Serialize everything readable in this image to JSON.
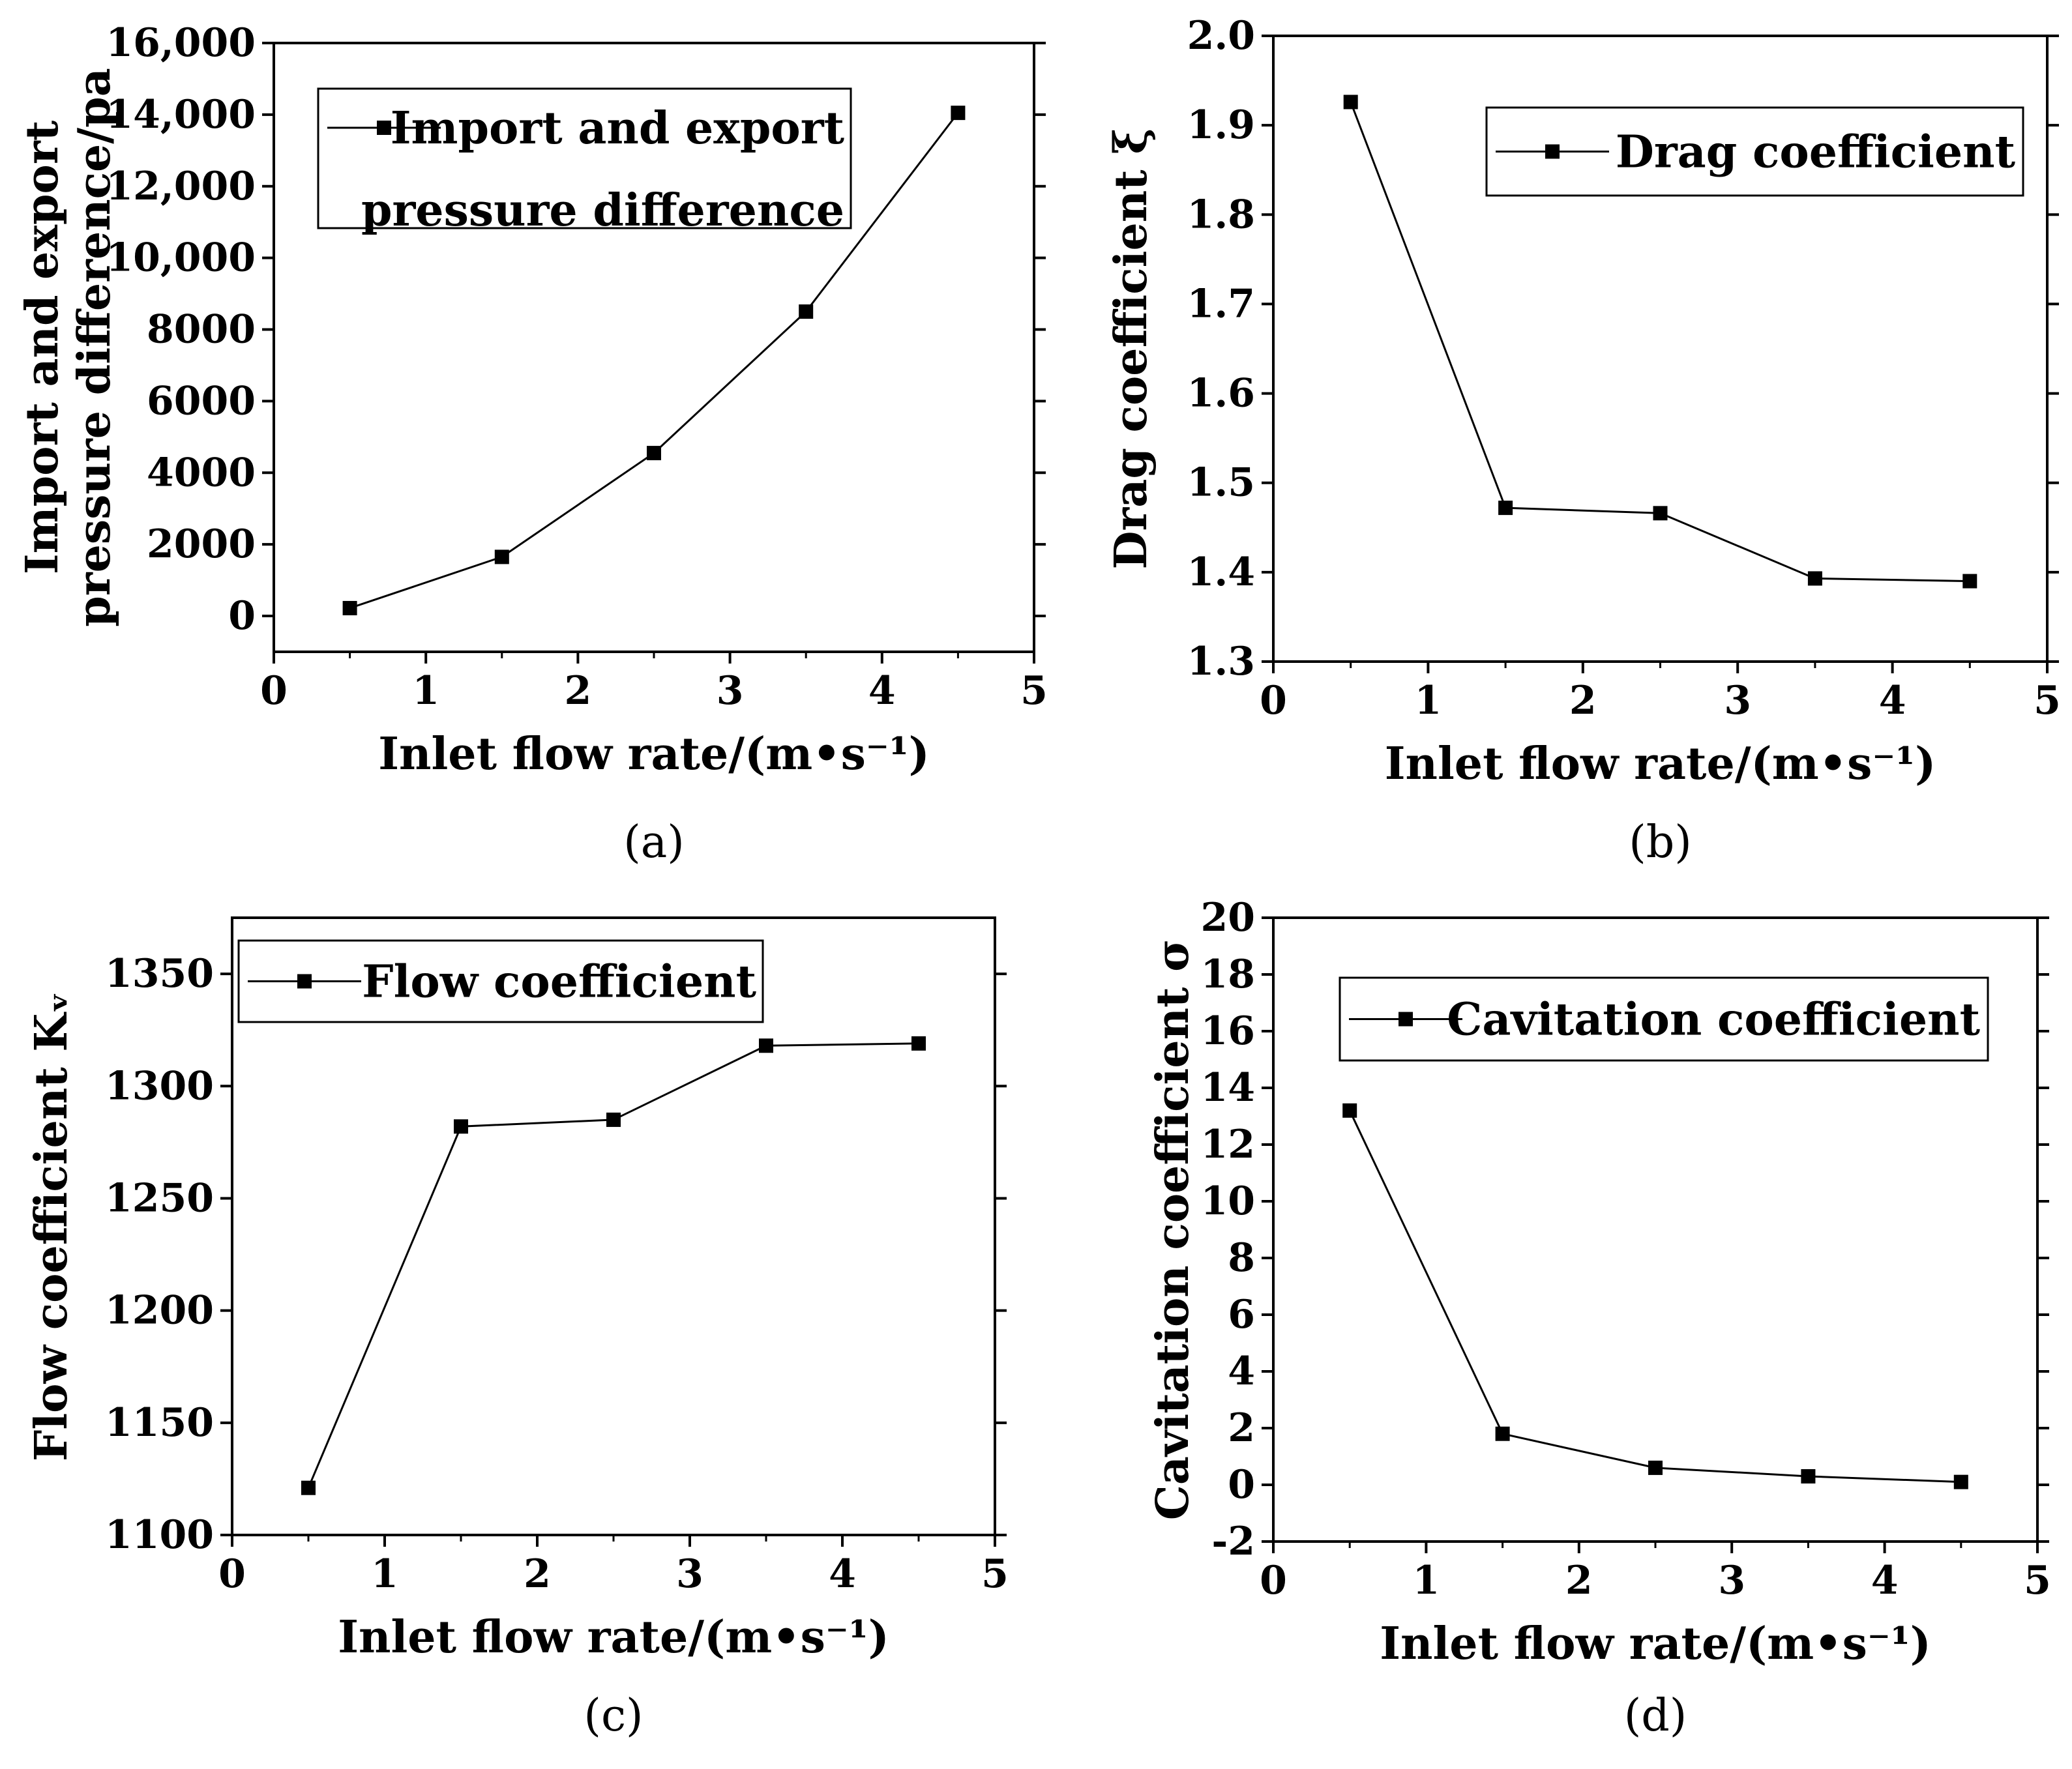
{
  "chart_data": [
    {
      "type": "line",
      "panel": "a",
      "caption": "(a)",
      "title": "",
      "xlabel": "Inlet flow rate/(m•s⁻¹)",
      "ylabel_lines": [
        "Import and export",
        "pressure difference/pa"
      ],
      "xlim": [
        0,
        5
      ],
      "ylim": [
        -1000,
        16000
      ],
      "x_ticks": [
        "0",
        "1",
        "2",
        "3",
        "4",
        "5"
      ],
      "x_tick_values": [
        0,
        1,
        2,
        3,
        4,
        5
      ],
      "y_ticks": [
        "0",
        "2000",
        "4000",
        "6000",
        "8000",
        "10,000",
        "12,000",
        "14,000",
        "16,000"
      ],
      "y_tick_values": [
        0,
        2000,
        4000,
        6000,
        8000,
        10000,
        12000,
        14000,
        16000
      ],
      "legend_position": "top-left",
      "legend_lines": [
        "Import and export",
        "pressure difference"
      ],
      "series": [
        {
          "name": "Import and export pressure difference",
          "x": [
            0.5,
            1.5,
            2.5,
            3.5,
            4.5
          ],
          "y": [
            220,
            1650,
            4550,
            8500,
            14050
          ]
        }
      ]
    },
    {
      "type": "line",
      "panel": "b",
      "caption": "(b)",
      "title": "",
      "xlabel": "Inlet flow rate/(m•s⁻¹)",
      "ylabel_lines": [
        "Drag coefficient ξ"
      ],
      "xlim": [
        0,
        5
      ],
      "ylim": [
        1.3,
        2.0
      ],
      "x_ticks": [
        "0",
        "1",
        "2",
        "3",
        "4",
        "5"
      ],
      "x_tick_values": [
        0,
        1,
        2,
        3,
        4,
        5
      ],
      "y_ticks": [
        "1.3",
        "1.4",
        "1.5",
        "1.6",
        "1.7",
        "1.8",
        "1.9",
        "2.0"
      ],
      "y_tick_values": [
        1.3,
        1.4,
        1.5,
        1.6,
        1.7,
        1.8,
        1.9,
        2.0
      ],
      "legend_position": "top-right",
      "legend_lines": [
        "Drag coefficient"
      ],
      "series": [
        {
          "name": "Drag coefficient",
          "x": [
            0.5,
            1.5,
            2.5,
            3.5,
            4.5
          ],
          "y": [
            1.926,
            1.472,
            1.466,
            1.393,
            1.39
          ]
        }
      ]
    },
    {
      "type": "line",
      "panel": "c",
      "caption": "(c)",
      "title": "",
      "xlabel": "Inlet flow rate/(m•s⁻¹)",
      "ylabel_lines": [
        "Flow coefficient Kᵥ"
      ],
      "xlim": [
        0,
        5
      ],
      "ylim": [
        1100,
        1375
      ],
      "x_ticks": [
        "0",
        "1",
        "2",
        "3",
        "4",
        "5"
      ],
      "x_tick_values": [
        0,
        1,
        2,
        3,
        4,
        5
      ],
      "y_ticks": [
        "1100",
        "1150",
        "1200",
        "1250",
        "1300",
        "1350"
      ],
      "y_tick_values": [
        1100,
        1150,
        1200,
        1250,
        1300,
        1350
      ],
      "legend_position": "top-left",
      "legend_lines": [
        "Flow coefficient"
      ],
      "series": [
        {
          "name": "Flow coefficient",
          "x": [
            0.5,
            1.5,
            2.5,
            3.5,
            4.5
          ],
          "y": [
            1121,
            1282,
            1285,
            1318,
            1319
          ]
        }
      ]
    },
    {
      "type": "line",
      "panel": "d",
      "caption": "(d)",
      "title": "",
      "xlabel": "Inlet flow rate/(m•s⁻¹)",
      "ylabel_lines": [
        "Cavitation coefficient σ"
      ],
      "xlim": [
        0,
        5
      ],
      "ylim": [
        -2,
        20
      ],
      "x_ticks": [
        "0",
        "1",
        "2",
        "3",
        "4",
        "5"
      ],
      "x_tick_values": [
        0,
        1,
        2,
        3,
        4,
        5
      ],
      "y_ticks": [
        "-2",
        "0",
        "2",
        "4",
        "6",
        "8",
        "10",
        "12",
        "14",
        "16",
        "18",
        "20"
      ],
      "y_tick_values": [
        -2,
        0,
        2,
        4,
        6,
        8,
        10,
        12,
        14,
        16,
        18,
        20
      ],
      "legend_position": "top-right",
      "legend_lines": [
        "Cavitation coefficient"
      ],
      "series": [
        {
          "name": "Cavitation coefficient",
          "x": [
            0.5,
            1.5,
            2.5,
            3.5,
            4.5
          ],
          "y": [
            13.2,
            1.8,
            0.6,
            0.3,
            0.1
          ]
        }
      ]
    }
  ]
}
